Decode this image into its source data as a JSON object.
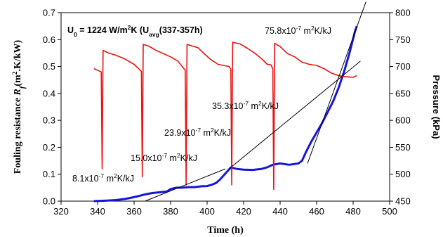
{
  "chart_data": {
    "type": "line",
    "title": "",
    "header_label": {
      "text": "U0 = 1224 W/m2K (Uavg(337-357h)",
      "rich": [
        {
          "t": "U",
          "s": "n"
        },
        {
          "t": "0",
          "s": "sub"
        },
        {
          "t": " = 1224 W/m",
          "s": "n"
        },
        {
          "t": "2",
          "s": "sup"
        },
        {
          "t": "K (U",
          "s": "n"
        },
        {
          "t": "avg",
          "s": "sub"
        },
        {
          "t": "(337-357h)",
          "s": "n"
        }
      ]
    },
    "xlabel": "Time (h)",
    "ylabel_left": {
      "text": "Fouling resistance Rf(m2.K/kW)",
      "rich": [
        {
          "t": "Fouling resistance ",
          "s": "n"
        },
        {
          "t": "R",
          "s": "i"
        },
        {
          "t": "f",
          "s": "isub"
        },
        {
          "t": "(m",
          "s": "n"
        },
        {
          "t": "2",
          "s": "sup"
        },
        {
          "t": ".K/kW)",
          "s": "n"
        }
      ]
    },
    "ylabel_right": "Pressure (kPa)",
    "xlim": [
      320,
      500
    ],
    "ylim_left": [
      0,
      0.7
    ],
    "ylim_right": [
      450,
      800
    ],
    "x_ticks": [
      "320",
      "340",
      "360",
      "380",
      "400",
      "420",
      "440",
      "460",
      "480",
      "500"
    ],
    "y_ticks_left": [
      "0.0",
      "0.1",
      "0.2",
      "0.3",
      "0.4",
      "0.5",
      "0.6",
      "0.7"
    ],
    "y_ticks_right": [
      "450",
      "500",
      "550",
      "600",
      "650",
      "700",
      "750",
      "800"
    ],
    "grid": false,
    "colors": {
      "fouling": "#1515dd",
      "pressure": "#ee1111",
      "trend": "#000000"
    },
    "series": [
      {
        "axis": "left",
        "points": [
          [
            338,
            0.0
          ],
          [
            345,
            0.002
          ],
          [
            350,
            0.004
          ],
          [
            355,
            0.008
          ],
          [
            358,
            0.012
          ],
          [
            362,
            0.018
          ],
          [
            366,
            0.025
          ],
          [
            370,
            0.03
          ],
          [
            374,
            0.033
          ],
          [
            378,
            0.036
          ],
          [
            380,
            0.045
          ],
          [
            383,
            0.05
          ],
          [
            386,
            0.05
          ],
          [
            390,
            0.052
          ],
          [
            393,
            0.052
          ],
          [
            397,
            0.055
          ],
          [
            400,
            0.056
          ],
          [
            403,
            0.062
          ],
          [
            405,
            0.068
          ],
          [
            407,
            0.08
          ],
          [
            409,
            0.095
          ],
          [
            411,
            0.11
          ],
          [
            413,
            0.125
          ],
          [
            416,
            0.12
          ],
          [
            420,
            0.117
          ],
          [
            425,
            0.116
          ],
          [
            430,
            0.12
          ],
          [
            433,
            0.126
          ],
          [
            436,
            0.135
          ],
          [
            440,
            0.14
          ],
          [
            445,
            0.135
          ],
          [
            450,
            0.14
          ],
          [
            452,
            0.15
          ],
          [
            454,
            0.18
          ],
          [
            457,
            0.22
          ],
          [
            460,
            0.255
          ],
          [
            463,
            0.29
          ],
          [
            466,
            0.33
          ],
          [
            469,
            0.37
          ],
          [
            472,
            0.42
          ],
          [
            475,
            0.48
          ],
          [
            478,
            0.55
          ],
          [
            481,
            0.63
          ],
          [
            482,
            0.65
          ]
        ]
      },
      {
        "axis": "right",
        "points": [
          [
            338,
            696
          ],
          [
            342,
            690
          ],
          [
            342.5,
            510
          ],
          [
            343,
            730
          ],
          [
            346,
            725
          ],
          [
            350,
            721
          ],
          [
            355,
            714
          ],
          [
            360,
            704
          ],
          [
            364,
            691
          ],
          [
            364.5,
            495
          ],
          [
            365,
            741
          ],
          [
            368,
            738
          ],
          [
            372,
            730
          ],
          [
            376,
            724
          ],
          [
            380,
            718
          ],
          [
            384,
            710
          ],
          [
            388,
            693
          ],
          [
            388.5,
            480
          ],
          [
            389,
            741
          ],
          [
            392,
            738
          ],
          [
            395,
            735
          ],
          [
            398,
            725
          ],
          [
            402,
            713
          ],
          [
            406,
            704
          ],
          [
            409,
            702
          ],
          [
            412,
            700
          ],
          [
            413,
            695
          ],
          [
            413.5,
            480
          ],
          [
            414,
            745
          ],
          [
            418,
            742
          ],
          [
            422,
            734
          ],
          [
            426,
            725
          ],
          [
            430,
            714
          ],
          [
            433,
            704
          ],
          [
            435,
            703
          ],
          [
            436,
            696
          ],
          [
            436.5,
            472
          ],
          [
            437,
            743
          ],
          [
            440,
            737
          ],
          [
            444,
            724
          ],
          [
            448,
            718
          ],
          [
            452,
            708
          ],
          [
            456,
            704
          ],
          [
            460,
            702
          ],
          [
            464,
            696
          ],
          [
            468,
            688
          ],
          [
            472,
            683
          ],
          [
            476,
            681
          ],
          [
            480,
            680
          ],
          [
            482,
            683
          ]
        ]
      },
      {
        "axis": "left",
        "points": [
          [
            366,
            0.0
          ],
          [
            410,
            0.12
          ]
        ]
      },
      {
        "axis": "left",
        "points": [
          [
            412,
            0.12
          ],
          [
            484,
            0.52
          ]
        ]
      },
      {
        "axis": "left",
        "points": [
          [
            455,
            0.14
          ],
          [
            487,
            0.74
          ]
        ]
      }
    ],
    "annotations": [
      {
        "text": "8.1x10-7 m2K/kJ",
        "rich": [
          {
            "t": "8.1x10",
            "s": "n"
          },
          {
            "t": "-7",
            "s": "sup"
          },
          {
            "t": " m",
            "s": "n"
          },
          {
            "t": "2",
            "s": "sup"
          },
          {
            "t": "K/kJ",
            "s": "n"
          }
        ]
      },
      {
        "text": "15.0x10-7 m2K/kJ",
        "rich": [
          {
            "t": "15.0x10",
            "s": "n"
          },
          {
            "t": "-7",
            "s": "sup"
          },
          {
            "t": " m",
            "s": "n"
          },
          {
            "t": "2",
            "s": "sup"
          },
          {
            "t": "K/kJ",
            "s": "n"
          }
        ]
      },
      {
        "text": "23.9x10-7 m2K/kJ",
        "rich": [
          {
            "t": "23.9x10",
            "s": "n"
          },
          {
            "t": "-7",
            "s": "sup"
          },
          {
            "t": " m",
            "s": "n"
          },
          {
            "t": "2",
            "s": "sup"
          },
          {
            "t": "K/kJ",
            "s": "n"
          }
        ]
      },
      {
        "text": "35.3x10-7 m2K/kJ",
        "rich": [
          {
            "t": "35.3x10",
            "s": "n"
          },
          {
            "t": "-7",
            "s": "sup"
          },
          {
            "t": " m",
            "s": "n"
          },
          {
            "t": "2",
            "s": "sup"
          },
          {
            "t": "K/kJ",
            "s": "n"
          }
        ]
      },
      {
        "text": "75.8x10-7 m2K/kJ",
        "rich": [
          {
            "t": "75.8x10",
            "s": "n"
          },
          {
            "t": "-7",
            "s": "sup"
          },
          {
            "t": " m",
            "s": "n"
          },
          {
            "t": "2",
            "s": "sup"
          },
          {
            "t": "K/kJ",
            "s": "n"
          }
        ]
      }
    ]
  }
}
